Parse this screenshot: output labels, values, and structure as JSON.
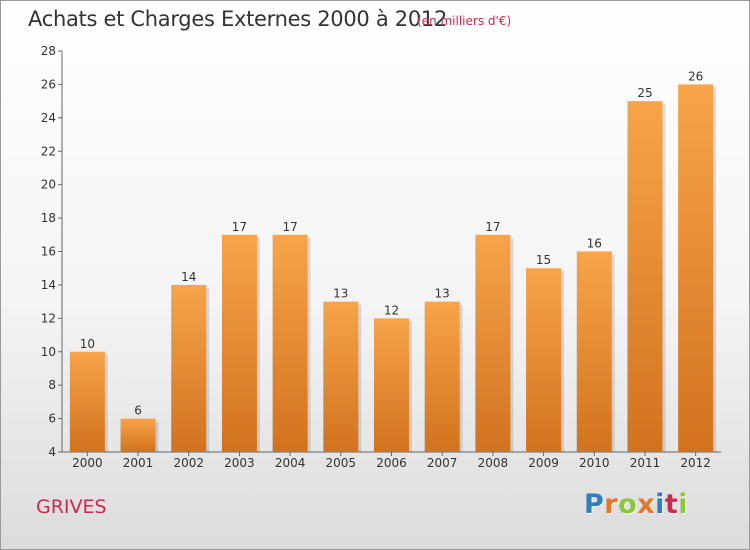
{
  "header": {
    "title": "Achats et Charges Externes 2000 à 2012",
    "unit": "(en milliers d'€)"
  },
  "footer": {
    "place": "GRIVES",
    "logo": [
      "P",
      "r",
      "o",
      "x",
      "i",
      "t",
      "i"
    ]
  },
  "colors": {
    "bar_top": "#f7a44a",
    "bar_bottom": "#d2721e",
    "accent": "#d0284c",
    "logo": [
      "#2f7dc2",
      "#e8742a",
      "#8cc63f",
      "#e8742a",
      "#2f7dc2",
      "#d0284c",
      "#8cc63f"
    ]
  },
  "chart_data": {
    "type": "bar",
    "title": "Achats et Charges Externes 2000 à 2012",
    "subtitle": "(en milliers d'€)",
    "xlabel": "",
    "ylabel": "",
    "categories": [
      "2000",
      "2001",
      "2002",
      "2003",
      "2004",
      "2005",
      "2006",
      "2007",
      "2008",
      "2009",
      "2010",
      "2011",
      "2012"
    ],
    "values": [
      10,
      6,
      14,
      17,
      17,
      13,
      12,
      13,
      17,
      15,
      16,
      25,
      26
    ],
    "ylim": [
      4,
      28
    ],
    "yticks": [
      4,
      6,
      8,
      10,
      12,
      14,
      16,
      18,
      20,
      22,
      24,
      26,
      28
    ],
    "grid": false,
    "legend": "none"
  }
}
